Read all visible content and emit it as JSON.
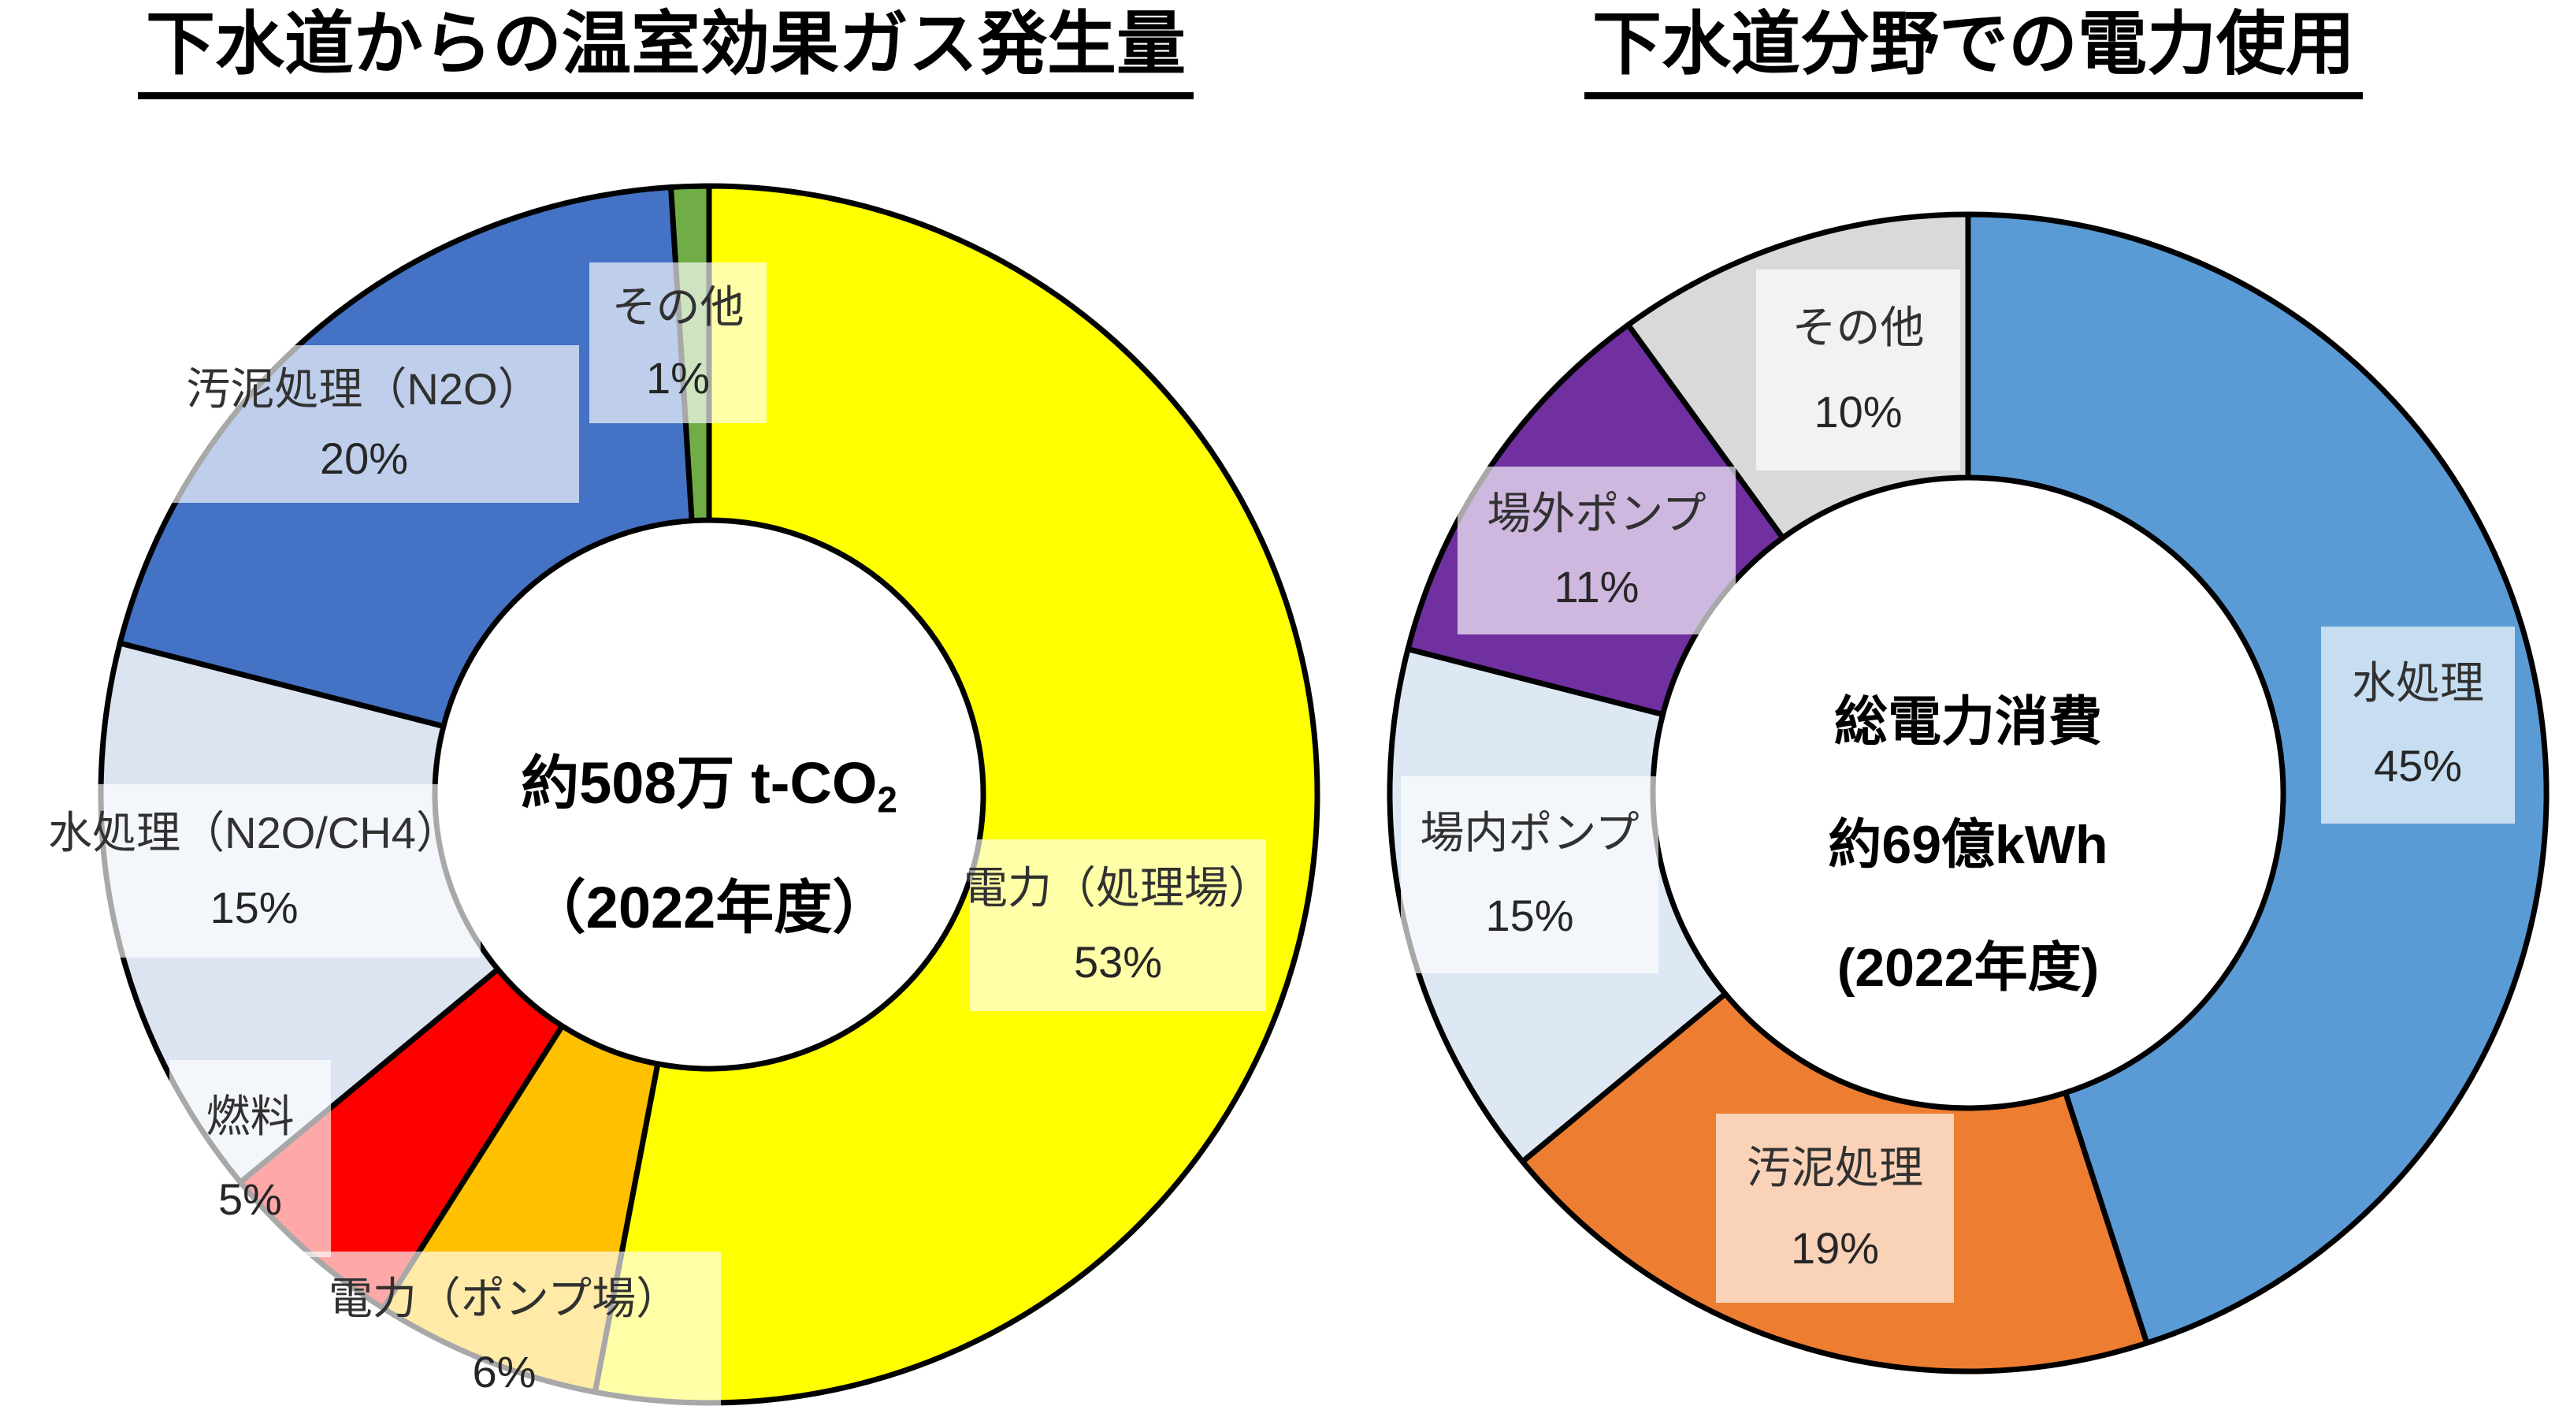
{
  "titles": {
    "left": "下水道からの温室効果ガス発生量",
    "right": "下水道分野での電力使用"
  },
  "centers": {
    "left": {
      "line1_main": "約508万 t-CO",
      "line1_sub": "2",
      "line2": "（2022年度）"
    },
    "right": {
      "line1": "総電力消費",
      "line2": "約69億kWh",
      "line3": "(2022年度)"
    }
  },
  "chart_data": [
    {
      "type": "pie",
      "subtype": "donut",
      "title": "下水道からの温室効果ガス発生量",
      "center_label": "約508万 t-CO2（2022年度）",
      "unit": "%",
      "start_angle_deg": 0,
      "direction": "clockwise",
      "segments": [
        {
          "label": "電力（処理場）",
          "value": 53,
          "color": "#FFFF00"
        },
        {
          "label": "電力（ポンプ場）",
          "value": 6,
          "color": "#FFC000"
        },
        {
          "label": "燃料",
          "value": 5,
          "color": "#FF0000"
        },
        {
          "label": "水処理（N2O/CH4）",
          "value": 15,
          "color": "#DBE4F0"
        },
        {
          "label": "汚泥処理（N2O）",
          "value": 20,
          "color": "#4472C4"
        },
        {
          "label": "その他",
          "value": 1,
          "color": "#70AD47"
        }
      ]
    },
    {
      "type": "pie",
      "subtype": "donut",
      "title": "下水道分野での電力使用",
      "center_label": "総電力消費 約69億kWh (2022年度)",
      "unit": "%",
      "start_angle_deg": 0,
      "direction": "clockwise",
      "segments": [
        {
          "label": "水処理",
          "value": 45,
          "color": "#5B9BD5"
        },
        {
          "label": "汚泥処理",
          "value": 19,
          "color": "#ED7D31"
        },
        {
          "label": "場内ポンプ",
          "value": 15,
          "color": "#DDE8F4"
        },
        {
          "label": "場外ポンプ",
          "value": 11,
          "color": "#7030A0"
        },
        {
          "label": "その他",
          "value": 10,
          "color": "#D9D9D9"
        }
      ]
    }
  ],
  "style": {
    "outline_color": "#000000",
    "label_box_color": "rgba(255,255,255,0.66)"
  }
}
